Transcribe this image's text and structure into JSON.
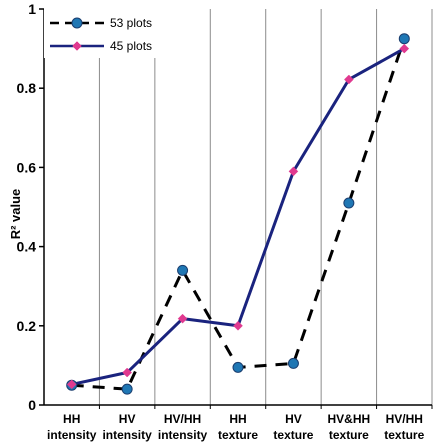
{
  "chart_data": {
    "type": "line",
    "ylabel": "R² value",
    "xlabel": "",
    "ylim": [
      0,
      1
    ],
    "yticks": [
      0,
      0.2,
      0.4,
      0.6,
      0.8,
      1
    ],
    "ytick_labels": [
      "0",
      "0.2",
      "0.4",
      "0.6",
      "0.8",
      "1"
    ],
    "categories": [
      {
        "line1": "HH",
        "line2": "intensity"
      },
      {
        "line1": "HV",
        "line2": "intensity"
      },
      {
        "line1": "HV/HH",
        "line2": "intensity"
      },
      {
        "line1": "HH",
        "line2": "texture"
      },
      {
        "line1": "HV",
        "line2": "texture"
      },
      {
        "line1": "HV&HH",
        "line2": "texture"
      },
      {
        "line1": "HV/HH",
        "line2": "texture"
      }
    ],
    "vertical_gridlines": true,
    "legend_position": "top-left",
    "series": [
      {
        "name": "53 plots",
        "values": [
          0.05,
          0.04,
          0.34,
          0.095,
          0.105,
          0.51,
          0.925
        ],
        "line_color": "#000000",
        "line_style": "dashed",
        "marker": "circle",
        "marker_color": "#1f77b4"
      },
      {
        "name": "45 plots",
        "values": [
          0.052,
          0.082,
          0.218,
          0.2,
          0.59,
          0.822,
          0.9
        ],
        "line_color": "#1a237e",
        "line_style": "solid",
        "marker": "diamond",
        "marker_color": "#e0398f"
      }
    ]
  }
}
